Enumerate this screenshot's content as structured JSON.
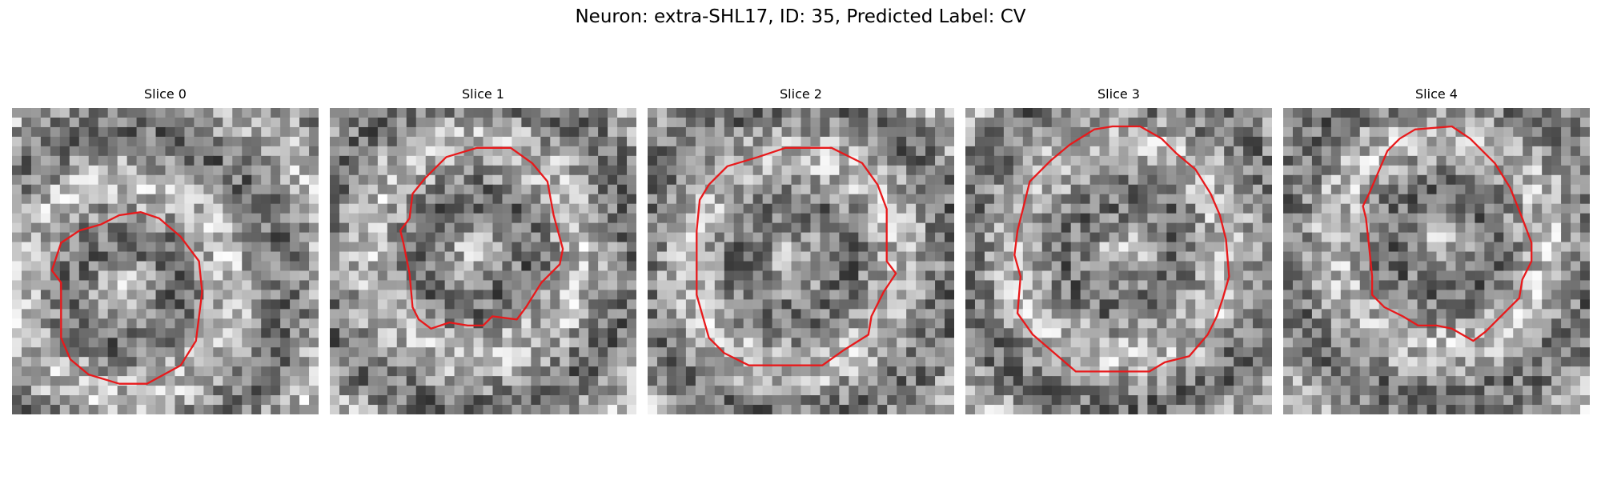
{
  "figure": {
    "title": "Neuron: extra-SHL17, ID: 35, Predicted Label: CV"
  },
  "panels": [
    {
      "title": "Slice 0",
      "seed": 11,
      "contour": [
        [
          0.42,
          0.34
        ],
        [
          0.48,
          0.36
        ],
        [
          0.55,
          0.42
        ],
        [
          0.61,
          0.5
        ],
        [
          0.62,
          0.6
        ],
        [
          0.6,
          0.76
        ],
        [
          0.55,
          0.84
        ],
        [
          0.44,
          0.9
        ],
        [
          0.35,
          0.9
        ],
        [
          0.25,
          0.87
        ],
        [
          0.19,
          0.82
        ],
        [
          0.16,
          0.75
        ],
        [
          0.16,
          0.57
        ],
        [
          0.13,
          0.53
        ],
        [
          0.16,
          0.44
        ],
        [
          0.22,
          0.4
        ],
        [
          0.29,
          0.38
        ],
        [
          0.35,
          0.35
        ]
      ]
    },
    {
      "title": "Slice 1",
      "seed": 23,
      "contour": [
        [
          0.38,
          0.16
        ],
        [
          0.48,
          0.13
        ],
        [
          0.59,
          0.13
        ],
        [
          0.66,
          0.18
        ],
        [
          0.71,
          0.24
        ],
        [
          0.73,
          0.35
        ],
        [
          0.76,
          0.46
        ],
        [
          0.75,
          0.51
        ],
        [
          0.69,
          0.57
        ],
        [
          0.64,
          0.65
        ],
        [
          0.61,
          0.69
        ],
        [
          0.53,
          0.68
        ],
        [
          0.5,
          0.71
        ],
        [
          0.45,
          0.71
        ],
        [
          0.39,
          0.7
        ],
        [
          0.33,
          0.72
        ],
        [
          0.29,
          0.69
        ],
        [
          0.27,
          0.65
        ],
        [
          0.26,
          0.54
        ],
        [
          0.24,
          0.44
        ],
        [
          0.23,
          0.4
        ],
        [
          0.26,
          0.36
        ],
        [
          0.27,
          0.28
        ],
        [
          0.31,
          0.23
        ]
      ]
    },
    {
      "title": "Slice 2",
      "seed": 37,
      "contour": [
        [
          0.36,
          0.16
        ],
        [
          0.45,
          0.13
        ],
        [
          0.6,
          0.13
        ],
        [
          0.7,
          0.18
        ],
        [
          0.75,
          0.25
        ],
        [
          0.78,
          0.33
        ],
        [
          0.78,
          0.5
        ],
        [
          0.81,
          0.54
        ],
        [
          0.77,
          0.6
        ],
        [
          0.73,
          0.68
        ],
        [
          0.72,
          0.74
        ],
        [
          0.64,
          0.79
        ],
        [
          0.57,
          0.84
        ],
        [
          0.45,
          0.84
        ],
        [
          0.33,
          0.84
        ],
        [
          0.25,
          0.8
        ],
        [
          0.2,
          0.75
        ],
        [
          0.18,
          0.68
        ],
        [
          0.16,
          0.61
        ],
        [
          0.16,
          0.4
        ],
        [
          0.17,
          0.3
        ],
        [
          0.2,
          0.25
        ],
        [
          0.26,
          0.19
        ]
      ]
    },
    {
      "title": "Slice 3",
      "seed": 41,
      "contour": [
        [
          0.42,
          0.07
        ],
        [
          0.48,
          0.06
        ],
        [
          0.57,
          0.06
        ],
        [
          0.64,
          0.1
        ],
        [
          0.69,
          0.15
        ],
        [
          0.75,
          0.2
        ],
        [
          0.8,
          0.28
        ],
        [
          0.83,
          0.35
        ],
        [
          0.85,
          0.43
        ],
        [
          0.86,
          0.55
        ],
        [
          0.84,
          0.62
        ],
        [
          0.82,
          0.68
        ],
        [
          0.79,
          0.74
        ],
        [
          0.73,
          0.81
        ],
        [
          0.65,
          0.83
        ],
        [
          0.6,
          0.86
        ],
        [
          0.48,
          0.86
        ],
        [
          0.36,
          0.86
        ],
        [
          0.29,
          0.8
        ],
        [
          0.22,
          0.74
        ],
        [
          0.17,
          0.67
        ],
        [
          0.18,
          0.55
        ],
        [
          0.16,
          0.48
        ],
        [
          0.17,
          0.4
        ],
        [
          0.19,
          0.32
        ],
        [
          0.21,
          0.24
        ],
        [
          0.28,
          0.17
        ],
        [
          0.34,
          0.12
        ]
      ]
    },
    {
      "title": "Slice 4",
      "seed": 53,
      "contour": [
        [
          0.43,
          0.07
        ],
        [
          0.55,
          0.06
        ],
        [
          0.61,
          0.1
        ],
        [
          0.69,
          0.18
        ],
        [
          0.74,
          0.26
        ],
        [
          0.78,
          0.36
        ],
        [
          0.81,
          0.44
        ],
        [
          0.81,
          0.5
        ],
        [
          0.78,
          0.56
        ],
        [
          0.77,
          0.62
        ],
        [
          0.71,
          0.68
        ],
        [
          0.66,
          0.73
        ],
        [
          0.62,
          0.76
        ],
        [
          0.55,
          0.72
        ],
        [
          0.5,
          0.71
        ],
        [
          0.44,
          0.71
        ],
        [
          0.39,
          0.68
        ],
        [
          0.33,
          0.65
        ],
        [
          0.29,
          0.61
        ],
        [
          0.29,
          0.55
        ],
        [
          0.28,
          0.45
        ],
        [
          0.27,
          0.36
        ],
        [
          0.26,
          0.32
        ],
        [
          0.28,
          0.28
        ],
        [
          0.31,
          0.21
        ],
        [
          0.34,
          0.14
        ],
        [
          0.38,
          0.1
        ]
      ]
    }
  ],
  "colors": {
    "contour": "#e8191b"
  }
}
